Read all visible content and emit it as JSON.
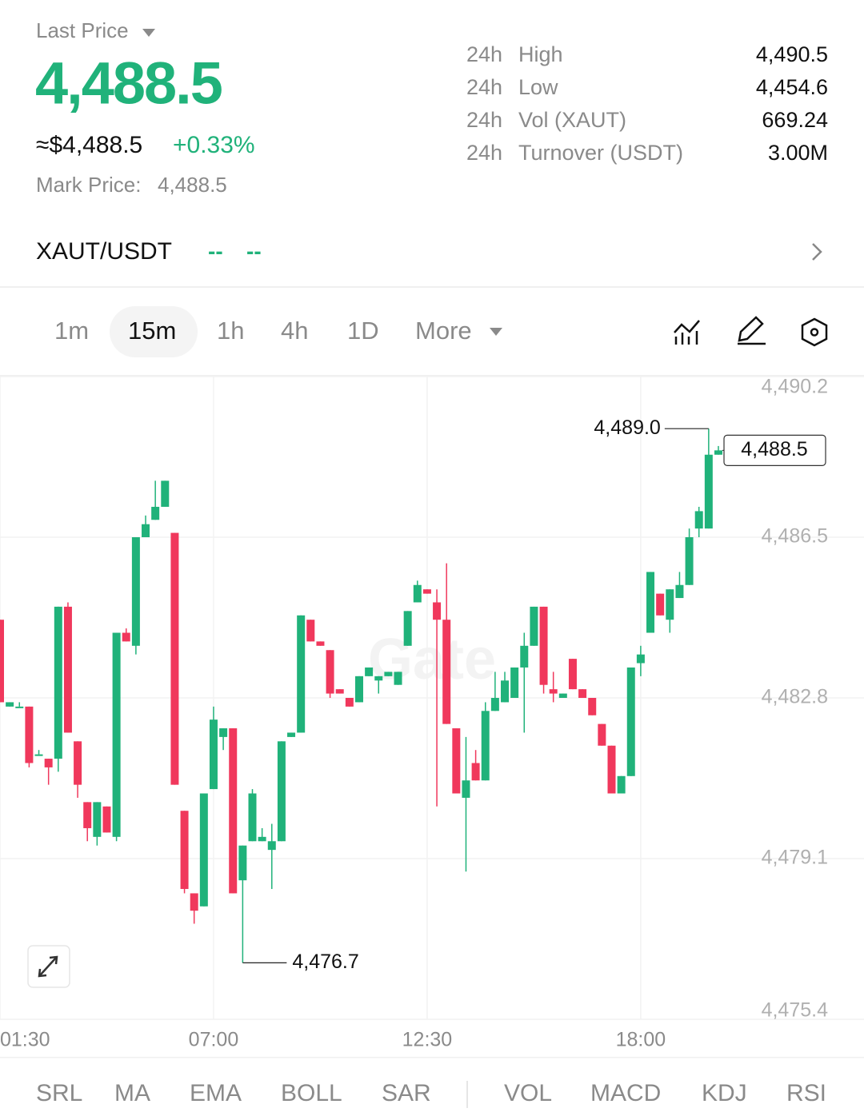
{
  "header": {
    "label": "Last Price",
    "price": "4,488.5",
    "usd": "≈$4,488.5",
    "change": "+0.33%",
    "mark_label": "Mark Price:",
    "mark_value": "4,488.5"
  },
  "stats": [
    {
      "period": "24h",
      "label": "High",
      "value": "4,490.5"
    },
    {
      "period": "24h",
      "label": "Low",
      "value": "4,454.6"
    },
    {
      "period": "24h",
      "label": "Vol (XAUT)",
      "value": "669.24"
    },
    {
      "period": "24h",
      "label": "Turnover (USDT)",
      "value": "3.00M"
    }
  ],
  "pair": {
    "name": "XAUT/USDT",
    "change1": "--",
    "change2": "--"
  },
  "timeframes": {
    "items": [
      "1m",
      "15m",
      "1h",
      "4h",
      "1D",
      "More"
    ],
    "active": 1
  },
  "indicators": {
    "main": [
      "SRL",
      "MA",
      "EMA",
      "BOLL",
      "SAR"
    ],
    "sub": [
      "VOL",
      "MACD",
      "KDJ",
      "RSI"
    ]
  },
  "chart_data": {
    "type": "candlestick",
    "watermark": "Gate",
    "x": [
      1.5,
      1.75,
      2,
      2.25,
      2.5,
      2.75,
      3,
      3.25,
      3.5,
      3.75,
      4,
      4.25,
      4.5,
      4.75,
      5,
      5.25,
      5.5,
      5.75,
      6,
      6.25,
      6.5,
      6.75,
      7,
      7.25,
      7.5,
      7.75,
      8,
      8.25,
      8.5,
      8.75,
      9,
      9.25,
      9.5,
      9.75,
      10,
      10.25,
      10.5,
      10.75,
      11,
      11.25,
      11.5,
      11.75,
      12,
      12.25,
      12.5,
      12.75,
      13,
      13.25,
      13.5,
      13.75,
      14,
      14.25,
      14.5,
      14.75,
      15,
      15.25,
      15.5,
      15.75,
      16,
      16.25,
      16.5,
      16.75,
      17,
      17.25,
      17.5,
      17.75,
      18,
      18.25,
      18.5,
      18.75,
      19,
      19.25,
      19.5,
      19.75,
      20
    ],
    "open": [
      4484.6,
      4482.6,
      4482.6,
      4482.6,
      4481.5,
      4481.4,
      4481.4,
      4484.9,
      4481.8,
      4480.4,
      4479.6,
      4480.3,
      4479.6,
      4484.3,
      4484.0,
      4486.5,
      4486.9,
      4487.2,
      4486.6,
      4480.2,
      4478.3,
      4478.0,
      4480.7,
      4481.9,
      4482.1,
      4478.6,
      4479.5,
      4479.5,
      4479.3,
      4479.5,
      4481.9,
      4482.0,
      4484.6,
      4484.1,
      4483.9,
      4483.0,
      4482.8,
      4482.7,
      4483.3,
      4483.2,
      4483.3,
      4483.1,
      4484.0,
      4485.0,
      4485.3,
      4485.0,
      4484.6,
      4482.1,
      4480.5,
      4481.3,
      4480.9,
      4482.5,
      4482.7,
      4482.8,
      4483.5,
      4484.0,
      4484.9,
      4483.0,
      4482.8,
      4483.7,
      4483.0,
      4482.8,
      4482.2,
      4481.7,
      4480.6,
      4481.0,
      4483.6,
      4484.3,
      4485.2,
      4484.6,
      4485.1,
      4485.4,
      4486.7,
      4486.7,
      4488.4
    ],
    "high": [
      4484.6,
      4482.7,
      4482.7,
      4482.6,
      4481.6,
      4481.4,
      4484.9,
      4485.0,
      4481.8,
      4480.4,
      4480.4,
      4480.3,
      4484.3,
      4484.4,
      4486.5,
      4487.0,
      4487.8,
      4487.8,
      4486.6,
      4480.2,
      4478.3,
      4480.6,
      4482.6,
      4482.1,
      4482.1,
      4479.4,
      4480.7,
      4479.8,
      4479.9,
      4481.8,
      4482.0,
      4484.7,
      4484.6,
      4484.1,
      4483.9,
      4483.0,
      4482.8,
      4483.3,
      4483.5,
      4483.3,
      4483.4,
      4483.4,
      4484.8,
      4485.5,
      4485.3,
      4485.3,
      4485.9,
      4482.1,
      4481.9,
      4481.6,
      4482.7,
      4483.4,
      4483.4,
      4483.5,
      4484.3,
      4484.9,
      4484.9,
      4483.4,
      4482.9,
      4483.7,
      4483.0,
      4482.8,
      4482.2,
      4481.7,
      4481.0,
      4483.5,
      4484.0,
      4485.7,
      4485.2,
      4485.3,
      4485.7,
      4486.7,
      4487.2,
      4489.0,
      4488.6
    ],
    "low": [
      4482.7,
      4482.6,
      4482.6,
      4481.2,
      4481.5,
      4480.8,
      4481.1,
      4482.0,
      4480.5,
      4479.5,
      4479.4,
      4479.7,
      4479.5,
      4484.1,
      4483.8,
      4486.5,
      4486.9,
      4487.2,
      4480.8,
      4478.3,
      4477.6,
      4478.0,
      4480.7,
      4481.6,
      4478.3,
      4476.7,
      4479.5,
      4479.5,
      4478.4,
      4479.5,
      4481.9,
      4482.0,
      4484.1,
      4484.0,
      4482.8,
      4482.9,
      4482.6,
      4482.7,
      4483.3,
      4482.9,
      4483.3,
      4483.1,
      4484.0,
      4485.0,
      4485.2,
      4480.3,
      4482.2,
      4480.6,
      4478.8,
      4480.9,
      4480.9,
      4482.5,
      4482.7,
      4482.8,
      4482.0,
      4484.0,
      4482.9,
      4482.7,
      4482.8,
      4483.0,
      4482.8,
      4482.4,
      4481.7,
      4480.6,
      4480.6,
      4481.0,
      4483.3,
      4484.3,
      4484.7,
      4484.3,
      4485.1,
      4485.4,
      4486.5,
      4486.7,
      4488.4
    ],
    "close": [
      4482.7,
      4482.7,
      4482.6,
      4481.3,
      4481.5,
      4481.2,
      4484.9,
      4482.0,
      4480.8,
      4479.8,
      4480.4,
      4479.7,
      4484.3,
      4484.1,
      4486.5,
      4486.8,
      4487.2,
      4487.8,
      4480.8,
      4478.4,
      4477.9,
      4480.6,
      4482.3,
      4482.1,
      4478.3,
      4479.4,
      4480.6,
      4479.6,
      4479.5,
      4481.8,
      4482.0,
      4484.7,
      4484.1,
      4484.0,
      4482.9,
      4482.9,
      4482.6,
      4483.3,
      4483.5,
      4483.3,
      4483.4,
      4483.4,
      4484.8,
      4485.4,
      4485.2,
      4484.6,
      4482.2,
      4480.6,
      4480.9,
      4480.9,
      4482.5,
      4482.8,
      4483.2,
      4483.5,
      4484.0,
      4484.9,
      4483.1,
      4482.9,
      4482.9,
      4483.0,
      4482.8,
      4482.4,
      4481.7,
      4480.6,
      4481.0,
      4483.5,
      4483.8,
      4485.7,
      4484.7,
      4485.3,
      4485.4,
      4486.5,
      4487.1,
      4488.4,
      4488.5
    ],
    "up_color": "#20b27a",
    "down_color": "#f0385c",
    "xlim": [
      1.5,
      23.75
    ],
    "xticks": [
      {
        "value": 1.5,
        "label": "01:30"
      },
      {
        "value": 7,
        "label": "07:00"
      },
      {
        "value": 12.5,
        "label": "12:30"
      },
      {
        "value": 18,
        "label": "18:00"
      }
    ],
    "ylim": [
      4475.4,
      4490.2
    ],
    "yticks": [
      {
        "value": 4490.2,
        "label": "4,490.2"
      },
      {
        "value": 4486.5,
        "label": "4,486.5"
      },
      {
        "value": 4482.8,
        "label": "4,482.8"
      },
      {
        "value": 4479.1,
        "label": "4,479.1"
      },
      {
        "value": 4475.4,
        "label": "4,475.4"
      }
    ],
    "grid": true,
    "annotations": [
      {
        "value": 4489.0,
        "label": "4,489.0"
      },
      {
        "value": 4476.7,
        "label": "4,476.7"
      }
    ],
    "last_price": {
      "value": 4488.5,
      "label": "4,488.5"
    }
  }
}
